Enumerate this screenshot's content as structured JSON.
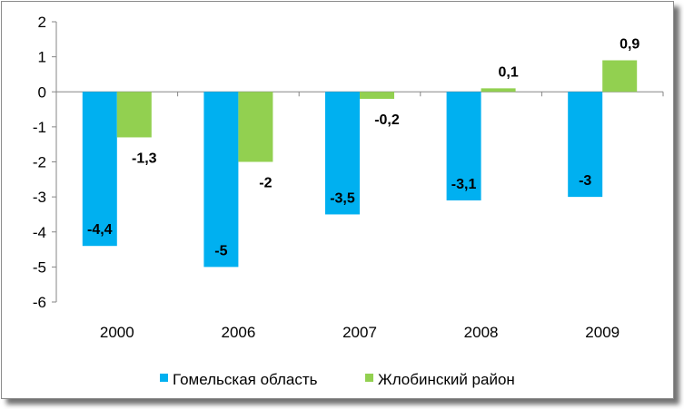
{
  "chart_data": {
    "type": "bar",
    "categories": [
      "2000",
      "2006",
      "2007",
      "2008",
      "2009"
    ],
    "series": [
      {
        "name": "Гомельская область",
        "values": [
          -4.4,
          -5,
          -3.5,
          -3.1,
          -3
        ],
        "labels": [
          "-4,4",
          "-5",
          "-3,5",
          "-3,1",
          "-3"
        ],
        "color": "#00b0f0"
      },
      {
        "name": "Жлобинский район",
        "values": [
          -1.3,
          -2,
          -0.2,
          0.1,
          0.9
        ],
        "labels": [
          "-1,3",
          "-2",
          "-0,2",
          "0,1",
          "0,9"
        ],
        "color": "#92d050"
      }
    ],
    "ylim": [
      -6,
      2
    ],
    "yticks": [
      "2",
      "1",
      "0",
      "-1",
      "-2",
      "-3",
      "-4",
      "-5",
      "-6"
    ],
    "grid": false,
    "legend_position": "bottom"
  }
}
